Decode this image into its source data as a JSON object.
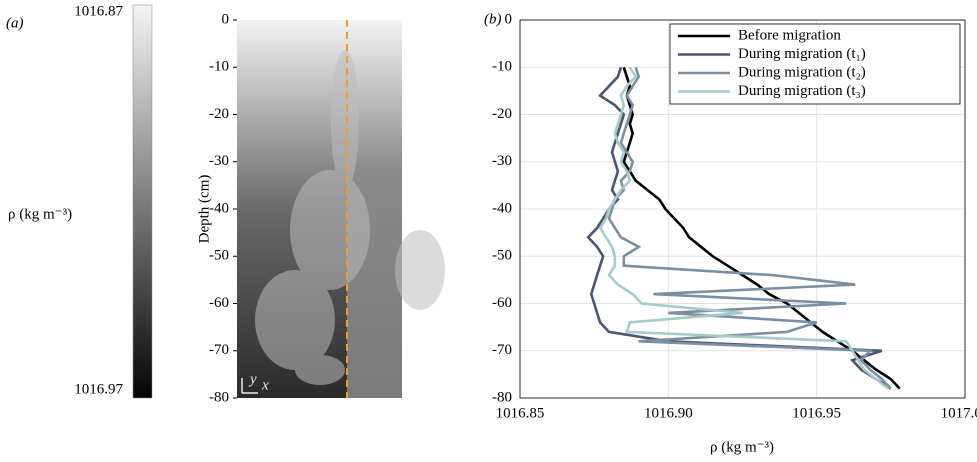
{
  "chart_data": [
    {
      "type": "image",
      "panel_label": "(a)",
      "colorbar_label": "ρ (kg m⁻³)",
      "clim": [
        1016.87,
        1016.97
      ],
      "ylabel": "Depth (cm)",
      "ylim": [
        -80,
        0
      ],
      "yticks": [
        0,
        -10,
        -20,
        -30,
        -40,
        -50,
        -60,
        -70,
        -80
      ],
      "orientation": {
        "x": "x",
        "y": "y"
      }
    },
    {
      "type": "line",
      "panel_label": "(b)",
      "xlabel": "ρ (kg m⁻³)",
      "xlim": [
        1016.85,
        1017
      ],
      "xticks": [
        1016.85,
        {
          "value": 1016.9,
          "label": "1016.90"
        },
        1016.95,
        {
          "value": 1017,
          "label": "1017.00"
        }
      ],
      "ylim": [
        -80,
        0
      ],
      "yticks": [
        0,
        -10,
        -20,
        -30,
        -40,
        -50,
        -60,
        -70,
        -80
      ],
      "grid": true,
      "legend": "upper right",
      "y": [
        -10,
        -12,
        -14,
        -16,
        -18,
        -20,
        -22,
        -24,
        -26,
        -28,
        -30,
        -32,
        -34,
        -36,
        -38,
        -40,
        -42,
        -44,
        -46,
        -48,
        -50,
        -52,
        -54,
        -56,
        -58,
        -60,
        -62,
        -64,
        -66,
        -68,
        -70,
        -72,
        -74,
        -76,
        -78
      ],
      "series": [
        {
          "name": "Before migration",
          "color": "#000000",
          "values": [
            1016.885,
            1016.886,
            1016.887,
            1016.886,
            1016.887,
            1016.888,
            1016.887,
            1016.888,
            1016.887,
            1016.886,
            1016.885,
            1016.887,
            1016.889,
            1016.893,
            1016.897,
            1016.899,
            1016.902,
            1016.905,
            1016.907,
            1016.911,
            1016.915,
            1016.92,
            1016.925,
            1016.93,
            1016.934,
            1016.94,
            1016.944,
            1016.948,
            1016.952,
            1016.957,
            1016.962,
            1016.966,
            1016.97,
            1016.975,
            1016.978
          ]
        },
        {
          "name": "During migration (t₁)",
          "color": "#4b5672",
          "values": [
            1016.884,
            1016.883,
            1016.88,
            1016.877,
            1016.882,
            1016.885,
            1016.884,
            1016.883,
            1016.882,
            1016.881,
            1016.882,
            1016.883,
            1016.882,
            1016.881,
            1016.883,
            1016.88,
            1016.878,
            1016.876,
            1016.873,
            1016.876,
            1016.878,
            1016.877,
            1016.876,
            1016.875,
            1016.874,
            1016.875,
            1016.876,
            1016.877,
            1016.88,
            1016.9,
            1016.972,
            1016.962,
            1016.965,
            1016.97,
            1016.975
          ]
        },
        {
          "name": "During migration (t₂)",
          "color": "#7b8fa1",
          "values": [
            1016.889,
            1016.89,
            1016.888,
            1016.886,
            1016.888,
            1016.887,
            1016.886,
            1016.885,
            1016.884,
            1016.886,
            1016.888,
            1016.887,
            1016.884,
            1016.885,
            1016.882,
            1016.881,
            1016.88,
            1016.882,
            1016.884,
            1016.89,
            1016.885,
            1016.885,
            1016.935,
            1016.963,
            1016.895,
            1016.96,
            1016.9,
            1016.95,
            1016.94,
            1016.89,
            1016.968,
            1016.965,
            1016.968,
            1016.972,
            1016.975
          ]
        },
        {
          "name": "During migration (t₃)",
          "color": "#a6cbcb",
          "values": [
            1016.887,
            1016.889,
            1016.886,
            1016.884,
            1016.885,
            1016.884,
            1016.883,
            1016.882,
            1016.883,
            1016.885,
            1016.884,
            1016.886,
            1016.887,
            1016.884,
            1016.882,
            1016.88,
            1016.879,
            1016.877,
            1016.879,
            1016.881,
            1016.882,
            1016.882,
            1016.88,
            1016.883,
            1016.888,
            1016.891,
            1016.925,
            1016.887,
            1016.886,
            1016.96,
            1016.962,
            1016.964,
            1016.966,
            1016.97,
            1016.974
          ]
        }
      ]
    }
  ]
}
